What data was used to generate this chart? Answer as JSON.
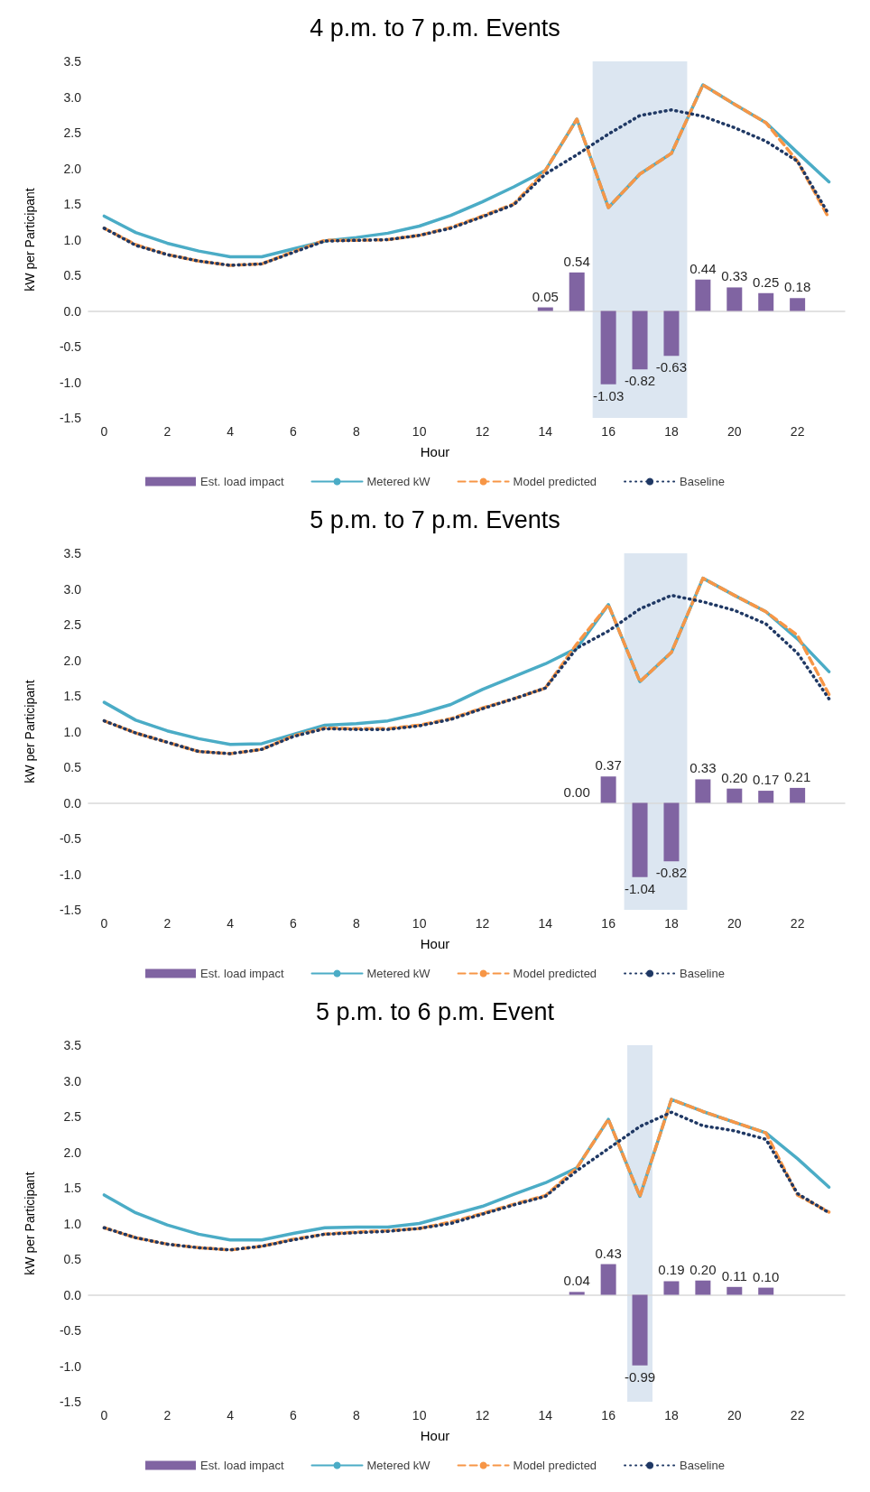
{
  "chart_data": [
    {
      "type": "line",
      "title": "4 p.m. to 7 p.m. Events",
      "xlabel": "Hour",
      "ylabel": "kW per Participant",
      "x": [
        0,
        1,
        2,
        3,
        4,
        5,
        6,
        7,
        8,
        9,
        10,
        11,
        12,
        13,
        14,
        15,
        16,
        17,
        18,
        19,
        20,
        21,
        22,
        23
      ],
      "xlim": [
        -0.5,
        23.5
      ],
      "xticks": [
        0,
        2,
        4,
        6,
        8,
        10,
        12,
        14,
        16,
        18,
        20,
        22
      ],
      "ylim": [
        -1.5,
        3.5
      ],
      "yticks": [
        {
          "value": -1.5,
          "label": "-1.5"
        },
        {
          "value": -1,
          "label": "-1.0"
        },
        {
          "value": -0.5,
          "label": "-0.5"
        },
        {
          "value": 0,
          "label": "0.0"
        },
        {
          "value": 0.5,
          "label": "0.5"
        },
        {
          "value": 1,
          "label": "1.0"
        },
        {
          "value": 1.5,
          "label": "1.5"
        },
        {
          "value": 2,
          "label": "2.0"
        },
        {
          "value": 2.5,
          "label": "2.5"
        },
        {
          "value": 3,
          "label": "3.0"
        },
        {
          "value": 3.5,
          "label": "3.5"
        }
      ],
      "legend": "bottom",
      "marker": "none",
      "bands": [
        {
          "axis": "x",
          "from": 15.5,
          "to": 18.5,
          "color": "#dce6f1"
        }
      ],
      "series": [
        {
          "name": "Est. load impact",
          "type": "bar",
          "color": "#8064a2",
          "values": [
            null,
            null,
            null,
            null,
            null,
            null,
            null,
            null,
            null,
            null,
            null,
            null,
            null,
            null,
            0.05,
            0.54,
            -1.03,
            -0.82,
            -0.63,
            0.44,
            0.33,
            0.25,
            0.18,
            null
          ],
          "value_labels": [
            null,
            null,
            null,
            null,
            null,
            null,
            null,
            null,
            null,
            null,
            null,
            null,
            null,
            null,
            "0.05",
            "0.54",
            "-1.03",
            "-0.82",
            "-0.63",
            "0.44",
            "0.33",
            "0.25",
            "0.18",
            null
          ]
        },
        {
          "name": "Metered kW",
          "color": "#4bacc6",
          "line_style": "solid",
          "values": [
            1.33,
            1.1,
            0.95,
            0.84,
            0.76,
            0.76,
            0.87,
            0.98,
            1.03,
            1.09,
            1.19,
            1.34,
            1.53,
            1.74,
            1.97,
            2.69,
            1.45,
            1.92,
            2.21,
            3.17,
            2.9,
            2.64,
            2.22,
            1.81
          ]
        },
        {
          "name": "Model predicted",
          "color": "#f79646",
          "line_style": "dashed",
          "values": [
            1.16,
            0.93,
            0.79,
            0.7,
            0.64,
            0.66,
            0.83,
            0.99,
            0.99,
            1.0,
            1.06,
            1.17,
            1.33,
            1.5,
            1.97,
            2.69,
            1.45,
            1.92,
            2.21,
            3.17,
            2.9,
            2.64,
            2.1,
            1.3
          ]
        },
        {
          "name": "Baseline",
          "color": "#1f3864",
          "line_style": "dotted",
          "values": [
            1.16,
            0.92,
            0.79,
            0.7,
            0.64,
            0.66,
            0.82,
            0.98,
            0.99,
            1.0,
            1.06,
            1.16,
            1.32,
            1.49,
            1.92,
            2.19,
            2.48,
            2.74,
            2.82,
            2.73,
            2.57,
            2.38,
            2.1,
            1.35
          ]
        }
      ]
    },
    {
      "type": "line",
      "title": "5 p.m. to 7 p.m. Events",
      "xlabel": "Hour",
      "ylabel": "kW per Participant",
      "x": [
        0,
        1,
        2,
        3,
        4,
        5,
        6,
        7,
        8,
        9,
        10,
        11,
        12,
        13,
        14,
        15,
        16,
        17,
        18,
        19,
        20,
        21,
        22,
        23
      ],
      "xlim": [
        -0.5,
        23.5
      ],
      "xticks": [
        0,
        2,
        4,
        6,
        8,
        10,
        12,
        14,
        16,
        18,
        20,
        22
      ],
      "ylim": [
        -1.5,
        3.5
      ],
      "yticks": [
        {
          "value": -1.5,
          "label": "-1.5"
        },
        {
          "value": -1,
          "label": "-1.0"
        },
        {
          "value": -0.5,
          "label": "-0.5"
        },
        {
          "value": 0,
          "label": "0.0"
        },
        {
          "value": 0.5,
          "label": "0.5"
        },
        {
          "value": 1,
          "label": "1.0"
        },
        {
          "value": 1.5,
          "label": "1.5"
        },
        {
          "value": 2,
          "label": "2.0"
        },
        {
          "value": 2.5,
          "label": "2.5"
        },
        {
          "value": 3,
          "label": "3.0"
        },
        {
          "value": 3.5,
          "label": "3.5"
        }
      ],
      "legend": "bottom",
      "marker": "none",
      "bands": [
        {
          "axis": "x",
          "from": 16.5,
          "to": 18.5,
          "color": "#dce6f1"
        }
      ],
      "series": [
        {
          "name": "Est. load impact",
          "type": "bar",
          "color": "#8064a2",
          "values": [
            null,
            null,
            null,
            null,
            null,
            null,
            null,
            null,
            null,
            null,
            null,
            null,
            null,
            null,
            null,
            0.0,
            0.37,
            -1.04,
            -0.82,
            0.33,
            0.2,
            0.17,
            0.21,
            null
          ],
          "value_labels": [
            null,
            null,
            null,
            null,
            null,
            null,
            null,
            null,
            null,
            null,
            null,
            null,
            null,
            null,
            null,
            "0.00",
            "0.37",
            "-1.04",
            "-0.82",
            "0.33",
            "0.20",
            "0.17",
            "0.21",
            null
          ]
        },
        {
          "name": "Metered kW",
          "color": "#4bacc6",
          "line_style": "solid",
          "values": [
            1.41,
            1.16,
            1.01,
            0.9,
            0.82,
            0.83,
            0.96,
            1.09,
            1.11,
            1.15,
            1.25,
            1.38,
            1.59,
            1.77,
            1.95,
            2.17,
            2.78,
            1.7,
            2.11,
            3.15,
            2.91,
            2.68,
            2.3,
            1.84
          ]
        },
        {
          "name": "Model predicted",
          "color": "#f79646",
          "line_style": "dashed",
          "values": [
            1.15,
            0.98,
            0.85,
            0.72,
            0.69,
            0.75,
            0.94,
            1.05,
            1.04,
            1.04,
            1.09,
            1.18,
            1.33,
            1.46,
            1.61,
            2.23,
            2.78,
            1.7,
            2.11,
            3.15,
            2.91,
            2.68,
            2.35,
            1.52
          ]
        },
        {
          "name": "Baseline",
          "color": "#1f3864",
          "line_style": "dotted",
          "values": [
            1.15,
            0.98,
            0.85,
            0.72,
            0.69,
            0.75,
            0.93,
            1.04,
            1.03,
            1.03,
            1.08,
            1.17,
            1.32,
            1.46,
            1.61,
            2.17,
            2.41,
            2.72,
            2.91,
            2.82,
            2.7,
            2.51,
            2.1,
            1.46
          ]
        }
      ]
    },
    {
      "type": "line",
      "title": "5 p.m. to 6 p.m. Event",
      "xlabel": "Hour",
      "ylabel": "kW per Participant",
      "x": [
        0,
        1,
        2,
        3,
        4,
        5,
        6,
        7,
        8,
        9,
        10,
        11,
        12,
        13,
        14,
        15,
        16,
        17,
        18,
        19,
        20,
        21,
        22,
        23
      ],
      "xlim": [
        -0.5,
        23.5
      ],
      "xticks": [
        0,
        2,
        4,
        6,
        8,
        10,
        12,
        14,
        16,
        18,
        20,
        22
      ],
      "ylim": [
        -1.5,
        3.5
      ],
      "yticks": [
        {
          "value": -1.5,
          "label": "-1.5"
        },
        {
          "value": -1,
          "label": "-1.0"
        },
        {
          "value": -0.5,
          "label": "-0.5"
        },
        {
          "value": 0,
          "label": "0.0"
        },
        {
          "value": 0.5,
          "label": "0.5"
        },
        {
          "value": 1,
          "label": "1.0"
        },
        {
          "value": 1.5,
          "label": "1.5"
        },
        {
          "value": 2,
          "label": "2.0"
        },
        {
          "value": 2.5,
          "label": "2.5"
        },
        {
          "value": 3,
          "label": "3.0"
        },
        {
          "value": 3.5,
          "label": "3.5"
        }
      ],
      "legend": "bottom",
      "marker": "none",
      "bands": [
        {
          "axis": "x",
          "from": 16.6,
          "to": 17.4,
          "color": "#dce6f1"
        }
      ],
      "series": [
        {
          "name": "Est. load impact",
          "type": "bar",
          "color": "#8064a2",
          "values": [
            null,
            null,
            null,
            null,
            null,
            null,
            null,
            null,
            null,
            null,
            null,
            null,
            null,
            null,
            null,
            0.04,
            0.43,
            -0.99,
            0.19,
            0.2,
            0.11,
            0.1,
            null,
            null
          ],
          "value_labels": [
            null,
            null,
            null,
            null,
            null,
            null,
            null,
            null,
            null,
            null,
            null,
            null,
            null,
            null,
            null,
            "0.04",
            "0.43",
            "-0.99",
            "0.19",
            "0.20",
            "0.11",
            "0.10",
            null,
            null
          ]
        },
        {
          "name": "Metered kW",
          "color": "#4bacc6",
          "line_style": "solid",
          "values": [
            1.4,
            1.15,
            0.98,
            0.85,
            0.77,
            0.77,
            0.86,
            0.94,
            0.95,
            0.95,
            1.0,
            1.12,
            1.24,
            1.41,
            1.57,
            1.78,
            2.46,
            1.38,
            2.74,
            2.57,
            2.42,
            2.27,
            1.91,
            1.51
          ]
        },
        {
          "name": "Model predicted",
          "color": "#f79646",
          "line_style": "dashed",
          "values": [
            0.94,
            0.8,
            0.71,
            0.66,
            0.63,
            0.68,
            0.78,
            0.85,
            0.88,
            0.9,
            0.93,
            1.02,
            1.14,
            1.27,
            1.39,
            1.78,
            2.46,
            1.38,
            2.74,
            2.57,
            2.42,
            2.27,
            1.4,
            1.16
          ]
        },
        {
          "name": "Baseline",
          "color": "#1f3864",
          "line_style": "dotted",
          "values": [
            0.94,
            0.8,
            0.71,
            0.66,
            0.63,
            0.68,
            0.77,
            0.85,
            0.87,
            0.89,
            0.93,
            1.0,
            1.13,
            1.26,
            1.38,
            1.74,
            2.05,
            2.36,
            2.56,
            2.37,
            2.3,
            2.18,
            1.42,
            1.15
          ]
        }
      ]
    }
  ]
}
